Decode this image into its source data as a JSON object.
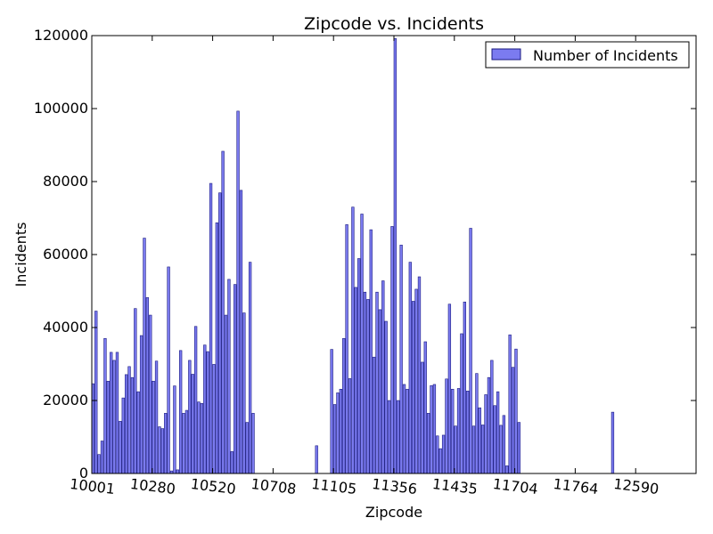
{
  "chart_data": {
    "type": "bar",
    "title": "Zipcode vs. Incidents",
    "xlabel": "Zipcode",
    "ylabel": "Incidents",
    "ylim": [
      0,
      120000
    ],
    "yticks": [
      0,
      20000,
      40000,
      60000,
      80000,
      100000,
      120000
    ],
    "ytick_labels": [
      "0",
      "20000",
      "40000",
      "60000",
      "80000",
      "100000",
      "120000"
    ],
    "xlim": [
      0,
      200
    ],
    "xticks": [
      0,
      20,
      40,
      60,
      80,
      100,
      120,
      140,
      160,
      180
    ],
    "xtick_labels": [
      "10001",
      "10280",
      "10520",
      "10708",
      "11105",
      "11356",
      "11435",
      "11704",
      "11764",
      "12590"
    ],
    "xtick_rotation_deg": 7,
    "legend": {
      "label": "Number of Incidents",
      "position": "top-right"
    },
    "colors": {
      "bar_fill": "#7b7bf0",
      "bar_edge": "#1a1a80",
      "axis": "#000000"
    },
    "grid": false,
    "series": [
      {
        "name": "Number of Incidents",
        "values": [
          24600,
          44500,
          5200,
          8900,
          37000,
          25300,
          33200,
          31000,
          33200,
          14300,
          20700,
          27100,
          29300,
          26300,
          45200,
          22400,
          37800,
          64500,
          48200,
          43400,
          25300,
          30800,
          12800,
          12300,
          16500,
          56600,
          700,
          24000,
          1000,
          33700,
          16500,
          17300,
          31000,
          27200,
          40300,
          19600,
          19200,
          35200,
          33400,
          79500,
          29900,
          68700,
          76900,
          88300,
          43400,
          53200,
          6000,
          51800,
          99300,
          77600,
          44000,
          14000,
          57900,
          16500,
          0,
          0,
          0,
          0,
          0,
          0,
          0,
          0,
          0,
          0,
          0,
          0,
          0,
          0,
          0,
          0,
          0,
          0,
          0,
          0,
          7600,
          0,
          0,
          0,
          0,
          34000,
          18900,
          22100,
          23100,
          37000,
          68200,
          26000,
          73000,
          51000,
          58900,
          71100,
          49700,
          47700,
          66800,
          31900,
          49700,
          44900,
          52800,
          41700,
          20000,
          67700,
          119200,
          20000,
          62600,
          24400,
          23100,
          57900,
          47200,
          50500,
          53900,
          30500,
          36100,
          16500,
          24100,
          24400,
          10300,
          6800,
          10500,
          25900,
          46400,
          23100,
          13000,
          23300,
          38300,
          47000,
          22600,
          67200,
          13000,
          27400,
          18000,
          13300,
          21600,
          26300,
          31000,
          18600,
          22400,
          13200,
          15900,
          2100,
          38000,
          29100,
          34100,
          14000,
          0,
          0,
          0,
          0,
          0,
          0,
          0,
          0,
          0,
          0,
          0,
          0,
          0,
          0,
          0,
          0,
          0,
          0,
          0,
          0,
          0,
          0,
          0,
          0,
          0,
          0,
          0,
          0,
          0,
          0,
          16800,
          0,
          0,
          0,
          0,
          0,
          0,
          0,
          0,
          0,
          0,
          0,
          0,
          0,
          0,
          0,
          0,
          0,
          0,
          0,
          0,
          0,
          0,
          0,
          0,
          0,
          0,
          0
        ]
      }
    ]
  }
}
